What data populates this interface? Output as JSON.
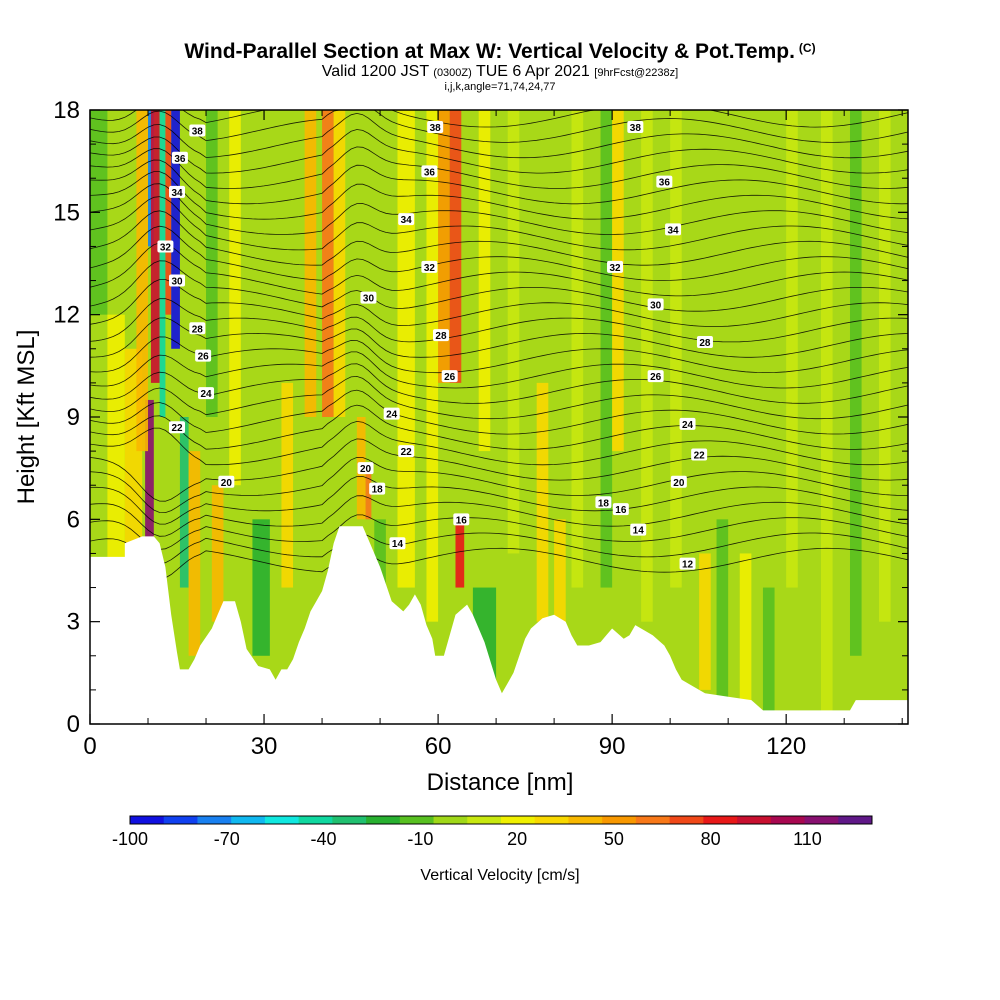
{
  "header": {
    "title": "Wind-Parallel Section at Max W: Vertical Velocity & Pot.Temp.",
    "title_tag": "(C)",
    "valid_prefix": "Valid 1200 JST",
    "valid_utc": "(0300Z)",
    "valid_date": "TUE 6 Apr 2021",
    "forecast": "[9hrFcst@2238z]",
    "indices": "i,j,k,angle=71,74,24,77"
  },
  "chart_data": {
    "type": "heatmap",
    "xlabel": "Distance [nm]",
    "ylabel": "Height [Kft MSL]",
    "xlim": [
      0,
      141
    ],
    "ylim": [
      0,
      18
    ],
    "x_ticks": [
      0,
      30,
      60,
      90,
      120
    ],
    "y_ticks": [
      0,
      3,
      6,
      9,
      12,
      15,
      18
    ],
    "colorbar": {
      "label": "Vertical Velocity [cm/s]",
      "tick_labels": [
        "-100",
        "-70",
        "-40",
        "-10",
        "20",
        "50",
        "80",
        "110"
      ],
      "colors": [
        "#1010e0",
        "#1040f0",
        "#1880f0",
        "#10b8f0",
        "#10e8e0",
        "#10d8a0",
        "#20c070",
        "#28b030",
        "#58c020",
        "#a0d818",
        "#c8e810",
        "#f0f000",
        "#f8d800",
        "#f8b800",
        "#f89800",
        "#f87818",
        "#f04818",
        "#e81818",
        "#c81030",
        "#a80850",
        "#881070",
        "#601888"
      ],
      "range": [
        -100,
        130
      ]
    },
    "contour_labels": [
      {
        "text": "38",
        "x": 18.5,
        "y": 17.4
      },
      {
        "text": "38",
        "x": 59.5,
        "y": 17.5
      },
      {
        "text": "38",
        "x": 94,
        "y": 17.5
      },
      {
        "text": "36",
        "x": 15.5,
        "y": 16.6
      },
      {
        "text": "36",
        "x": 58.5,
        "y": 16.2
      },
      {
        "text": "36",
        "x": 99,
        "y": 15.9
      },
      {
        "text": "34",
        "x": 15,
        "y": 15.6
      },
      {
        "text": "34",
        "x": 54.5,
        "y": 14.8
      },
      {
        "text": "34",
        "x": 100.5,
        "y": 14.5
      },
      {
        "text": "32",
        "x": 13,
        "y": 14.0
      },
      {
        "text": "32",
        "x": 58.5,
        "y": 13.4
      },
      {
        "text": "32",
        "x": 90.5,
        "y": 13.4
      },
      {
        "text": "30",
        "x": 15,
        "y": 13.0
      },
      {
        "text": "30",
        "x": 48,
        "y": 12.5
      },
      {
        "text": "30",
        "x": 97.5,
        "y": 12.3
      },
      {
        "text": "28",
        "x": 18.5,
        "y": 11.6
      },
      {
        "text": "28",
        "x": 60.5,
        "y": 11.4
      },
      {
        "text": "28",
        "x": 106,
        "y": 11.2
      },
      {
        "text": "26",
        "x": 19.5,
        "y": 10.8
      },
      {
        "text": "26",
        "x": 62,
        "y": 10.2
      },
      {
        "text": "26",
        "x": 97.5,
        "y": 10.2
      },
      {
        "text": "24",
        "x": 20,
        "y": 9.7
      },
      {
        "text": "24",
        "x": 52,
        "y": 9.1
      },
      {
        "text": "24",
        "x": 103,
        "y": 8.8
      },
      {
        "text": "22",
        "x": 15,
        "y": 8.7
      },
      {
        "text": "22",
        "x": 54.5,
        "y": 8.0
      },
      {
        "text": "22",
        "x": 105,
        "y": 7.9
      },
      {
        "text": "20",
        "x": 23.5,
        "y": 7.1
      },
      {
        "text": "20",
        "x": 47.5,
        "y": 7.5
      },
      {
        "text": "20",
        "x": 101.5,
        "y": 7.1
      },
      {
        "text": "18",
        "x": 49.5,
        "y": 6.9
      },
      {
        "text": "18",
        "x": 88.5,
        "y": 6.5
      },
      {
        "text": "16",
        "x": 64,
        "y": 6.0
      },
      {
        "text": "16",
        "x": 91.5,
        "y": 6.3
      },
      {
        "text": "14",
        "x": 53,
        "y": 5.3
      },
      {
        "text": "14",
        "x": 94.5,
        "y": 5.7
      },
      {
        "text": "12",
        "x": 103,
        "y": 4.7
      }
    ]
  }
}
